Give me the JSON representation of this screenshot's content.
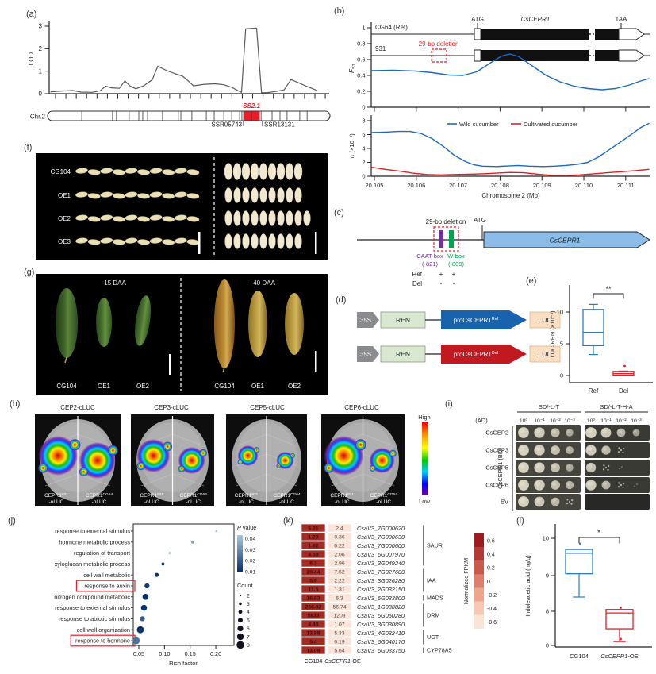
{
  "colors": {
    "blue": "#2b7bc4",
    "red": "#e01f26",
    "accent_red": "#ee1c25",
    "heat_hi": "#a32b24",
    "heat_lo": "#fbe4d9"
  },
  "panels": {
    "a": {
      "label": "(a)",
      "ylabel": "LOD",
      "yticks": [
        0,
        1,
        2,
        3
      ],
      "chr_label": "Chr.2",
      "locus": "SS2.1",
      "marker_left": "SSR05743",
      "marker_right": "SSR13131",
      "bands": [
        0.121,
        0.23,
        0.244,
        0.289,
        0.323,
        0.337,
        0.354,
        0.407,
        0.463,
        0.472,
        0.511,
        0.562,
        0.59,
        0.624,
        0.652,
        0.68,
        0.688,
        0.756,
        0.795,
        0.823,
        0.848,
        0.893,
        0.919
      ],
      "locus_region": [
        0.694,
        0.75
      ]
    },
    "b": {
      "label": "(b)",
      "gene_rows": [
        {
          "name": "CG64 (Ref)"
        },
        {
          "name": "931"
        }
      ],
      "deletion_label": "29-bp deletion",
      "atg": "ATG",
      "taa": "TAA",
      "gene": "CsCEPR1",
      "fst_yticks": [
        "1",
        "0.8",
        "0.6",
        "0.4",
        "0.2",
        "0"
      ],
      "pi_label": "π (×10⁻³)",
      "pi_yticks": [
        "8",
        "6",
        "4",
        "2",
        "0"
      ],
      "legend": [
        {
          "label": "Wild cucumber",
          "color": "#1b6ac2"
        },
        {
          "label": "Cultivated cucumber",
          "color": "#e01f26"
        }
      ],
      "xlabel": "Chromosome 2 (Mb)",
      "xticks": [
        "20.105",
        "20.106",
        "20.107",
        "20.108",
        "20.109",
        "20.110",
        "20.111"
      ]
    },
    "c": {
      "label": "(c)",
      "deletion_label": "29-bp deletion",
      "atg": "ATG",
      "gene": "CsCEPR1",
      "caat": {
        "name": "CAAT-box",
        "pos": "(-821)",
        "color": "#7030a0"
      },
      "wbox": {
        "name": "W-box",
        "pos": "(-809)",
        "color": "#00a550"
      },
      "rows": [
        {
          "name": "Ref",
          "caat": "+",
          "wbox": "+"
        },
        {
          "name": "Del",
          "caat": "-",
          "wbox": "-"
        }
      ]
    },
    "d": {
      "label": "(d)",
      "constructs": [
        {
          "promoter": "35S",
          "reporter1": "REN",
          "insert": "proCsCEPR1",
          "sup": "Ref",
          "reporter2": "LUC",
          "color": "#1862ae"
        },
        {
          "promoter": "35S",
          "reporter1": "REN",
          "insert": "proCsCEPR1",
          "sup": "Del",
          "reporter2": "LUC",
          "color": "#c01a20"
        }
      ]
    },
    "e": {
      "label": "(e)",
      "ylabel": "LUC/REN (×10⁻³)",
      "yticks": [
        "0",
        "5",
        "10"
      ],
      "sig": "**",
      "categories": [
        "Ref",
        "Del"
      ]
    },
    "f": {
      "label": "(f)",
      "rows": [
        "CG104",
        "OE1",
        "OE2",
        "OE3"
      ],
      "seed_counts_side": [
        10,
        10,
        10,
        10
      ],
      "seed_counts_top": [
        9,
        9,
        10,
        9
      ]
    },
    "g": {
      "label": "(g)",
      "timepoints": [
        "15 DAA",
        "40 DAA"
      ],
      "categories": [
        "CG104",
        "OE1",
        "OE2"
      ]
    },
    "h": {
      "label": "(h)",
      "titles": [
        "CEP2-cLUC",
        "CEP3-cLUC",
        "CEP5-cLUC",
        "CEP6-cLUC"
      ],
      "half_labels": [
        {
          "main": "CEPR1",
          "sup": "931",
          "sub": "-nLUC"
        },
        {
          "main": "CEPR1",
          "sup": "CG64",
          "sub": "-nLUC"
        }
      ],
      "scale": {
        "high": "High",
        "low": "Low"
      },
      "blobs": [
        [
          25,
          23
        ],
        [
          21,
          17
        ],
        [
          13,
          11
        ],
        [
          25,
          16
        ]
      ]
    },
    "i": {
      "label": "(i)",
      "media": [
        "SD/-L-T",
        "SD/-L-T-H-A"
      ],
      "ad_label": "(AD)",
      "bd_label": "CsCEPR1 (BD)",
      "dilutions": [
        "10⁰",
        "10⁻¹",
        "10⁻²",
        "10⁻³"
      ],
      "rows": [
        {
          "name": "CsCEP2",
          "left": [
            1,
            0.95,
            0.75,
            0.55
          ],
          "right": [
            1,
            0.9,
            0.7,
            0.5
          ]
        },
        {
          "name": "CsCEP3",
          "left": [
            1,
            0.95,
            0.8,
            0.6
          ],
          "right": [
            0.95,
            0.75,
            0.35,
            0
          ]
        },
        {
          "name": "CsCEP5",
          "left": [
            1,
            0.95,
            0.8,
            0.55
          ],
          "right": [
            0.85,
            0.35,
            0.08,
            0
          ]
        },
        {
          "name": "CsCEP6",
          "left": [
            1,
            0.95,
            0.8,
            0.65
          ],
          "right": [
            0.95,
            0.7,
            0.3,
            0.08
          ]
        },
        {
          "name": "EV",
          "left": [
            1,
            0.9,
            0.7,
            0.45
          ],
          "right": [
            0,
            0,
            0,
            0
          ]
        }
      ]
    },
    "j": {
      "label": "(j)",
      "xlabel": "Rich factor",
      "xticks": [
        "0.05",
        "0.10",
        "0.15",
        "0.20"
      ],
      "pvalue_legend": {
        "title_italic": "P",
        "title_rest": " value",
        "ticks": [
          "0.04",
          "0.03",
          "0.02",
          "0.01"
        ]
      },
      "count_legend": {
        "title": "Count",
        "sizes": [
          2,
          3,
          4,
          5,
          6,
          7,
          8
        ]
      }
    },
    "k": {
      "label": "(k)",
      "columns": [
        "CG104",
        "CsCEPR1",
        "-OE"
      ],
      "colorbar": {
        "title": "Normalized FPKM",
        "ticks": [
          "0.6",
          "0.4",
          "0.2",
          "0",
          "-0.2",
          "-0.4",
          "-0.6"
        ],
        "colors": [
          "#9c1b1e",
          "#b33935",
          "#c85a4b",
          "#dd7f69",
          "#eda58c",
          "#f7c9b2",
          "#fbe4d6"
        ]
      }
    },
    "l": {
      "label": "(l)",
      "ylabel": "Indoleacetic acid (ng/g)",
      "yticks": [
        10,
        9,
        8,
        0
      ],
      "sig": "*",
      "categories": [
        "CG104",
        "CsCEPR1",
        "-OE"
      ]
    }
  },
  "chart_data": [
    {
      "id": "lod",
      "type": "line",
      "ylabel": "LOD",
      "ylim": [
        0,
        3
      ],
      "x": "relative position on Chr.2",
      "points": [
        [
          0,
          0.08
        ],
        [
          0.04,
          0.12
        ],
        [
          0.08,
          0.14
        ],
        [
          0.11,
          0.07
        ],
        [
          0.15,
          0.06
        ],
        [
          0.18,
          0.13
        ],
        [
          0.2,
          0.34
        ],
        [
          0.22,
          0.26
        ],
        [
          0.25,
          0.24
        ],
        [
          0.27,
          0.57
        ],
        [
          0.29,
          0.34
        ],
        [
          0.31,
          0.22
        ],
        [
          0.34,
          0.36
        ],
        [
          0.37,
          0.62
        ],
        [
          0.39,
          1.22
        ],
        [
          0.42,
          1.04
        ],
        [
          0.45,
          0.9
        ],
        [
          0.48,
          0.78
        ],
        [
          0.5,
          0.58
        ],
        [
          0.52,
          0.35
        ],
        [
          0.56,
          0.42
        ],
        [
          0.6,
          0.44
        ],
        [
          0.63,
          0.4
        ],
        [
          0.66,
          0.28
        ],
        [
          0.68,
          0.15
        ],
        [
          0.695,
          0.06
        ],
        [
          0.71,
          2.88
        ],
        [
          0.75,
          2.92
        ],
        [
          0.768,
          0.04
        ],
        [
          0.79,
          0.05
        ],
        [
          0.82,
          0.1
        ],
        [
          0.85,
          0.17
        ],
        [
          0.875,
          0.63
        ],
        [
          0.9,
          0.5
        ],
        [
          0.93,
          0.34
        ],
        [
          0.97,
          0.15
        ]
      ]
    },
    {
      "id": "fst",
      "type": "line",
      "ylabel": "FST",
      "ylim": [
        0,
        1
      ],
      "x_range": [
        20.105,
        20.1113
      ],
      "points": [
        [
          0,
          0.46
        ],
        [
          0.08,
          0.465
        ],
        [
          0.16,
          0.455
        ],
        [
          0.22,
          0.435
        ],
        [
          0.28,
          0.405
        ],
        [
          0.33,
          0.4
        ],
        [
          0.38,
          0.445
        ],
        [
          0.43,
          0.56
        ],
        [
          0.47,
          0.645
        ],
        [
          0.5,
          0.67
        ],
        [
          0.53,
          0.64
        ],
        [
          0.58,
          0.52
        ],
        [
          0.63,
          0.4
        ],
        [
          0.68,
          0.32
        ],
        [
          0.73,
          0.265
        ],
        [
          0.78,
          0.235
        ],
        [
          0.83,
          0.22
        ],
        [
          0.88,
          0.235
        ],
        [
          0.93,
          0.28
        ],
        [
          0.97,
          0.33
        ],
        [
          1,
          0.36
        ]
      ]
    },
    {
      "id": "pi",
      "type": "line",
      "ylabel": "π (×10⁻³)",
      "ylim": [
        0,
        8
      ],
      "x_range": [
        20.105,
        20.1113
      ],
      "xlabel": "Chromosome 2 (Mb)",
      "series": [
        {
          "name": "Wild cucumber",
          "color": "#1b6ac2",
          "points": [
            [
              0,
              6.3
            ],
            [
              0.05,
              6.35
            ],
            [
              0.1,
              6.45
            ],
            [
              0.14,
              6.45
            ],
            [
              0.18,
              6.15
            ],
            [
              0.22,
              5.4
            ],
            [
              0.26,
              4.3
            ],
            [
              0.3,
              3
            ],
            [
              0.34,
              2.1
            ],
            [
              0.37,
              1.65
            ],
            [
              0.4,
              1.45
            ],
            [
              0.45,
              1.4
            ],
            [
              0.5,
              1.5
            ],
            [
              0.53,
              1.55
            ],
            [
              0.57,
              1.45
            ],
            [
              0.62,
              1.4
            ],
            [
              0.66,
              1.45
            ],
            [
              0.7,
              1.55
            ],
            [
              0.74,
              1.7
            ],
            [
              0.78,
              2
            ],
            [
              0.82,
              2.8
            ],
            [
              0.86,
              3.9
            ],
            [
              0.9,
              5
            ],
            [
              0.94,
              6.1
            ],
            [
              0.97,
              7
            ],
            [
              1,
              7.6
            ]
          ]
        },
        {
          "name": "Cultivated cucumber",
          "color": "#e01f26",
          "points": [
            [
              0,
              1.3
            ],
            [
              0.05,
              1
            ],
            [
              0.1,
              0.75
            ],
            [
              0.15,
              0.45
            ],
            [
              0.2,
              0.25
            ],
            [
              0.25,
              0.2
            ],
            [
              0.3,
              0.25
            ],
            [
              0.35,
              0.3
            ],
            [
              0.4,
              0.35
            ],
            [
              0.45,
              0.45
            ],
            [
              0.5,
              0.55
            ],
            [
              0.55,
              0.5
            ],
            [
              0.6,
              0.3
            ],
            [
              0.65,
              0.12
            ],
            [
              0.7,
              0.1
            ],
            [
              0.75,
              0.2
            ],
            [
              0.8,
              0.35
            ],
            [
              0.85,
              0.5
            ],
            [
              0.9,
              0.65
            ],
            [
              0.95,
              0.8
            ],
            [
              1,
              1
            ]
          ]
        }
      ]
    },
    {
      "id": "luc",
      "type": "box",
      "ylabel": "LUC/REN (×10⁻³)",
      "ylim": [
        0,
        14
      ],
      "sig": "**",
      "boxes": [
        {
          "name": "Ref",
          "color": "#2b7bc4",
          "q1": 4.7,
          "q3": 10.4,
          "median": 6.8,
          "whisker_low": 3.3,
          "whisker_high": 11.2,
          "outliers": []
        },
        {
          "name": "Del",
          "color": "#e01f26",
          "q1": 0.05,
          "q3": 0.65,
          "median": 0.3,
          "whisker_low": 0.0,
          "whisker_high": 0.7,
          "outliers": [
            1.5
          ]
        }
      ]
    },
    {
      "id": "go",
      "type": "scatter",
      "xlabel": "Rich factor",
      "xlim": [
        0.04,
        0.21
      ],
      "categories": [
        {
          "term": "response to external stimulus",
          "rich": 0.201,
          "count": 2,
          "p": 0.04,
          "boxed": false
        },
        {
          "term": "hormone metabolic process",
          "rich": 0.155,
          "count": 3,
          "p": 0.03,
          "boxed": false
        },
        {
          "term": "regulation of transport",
          "rich": 0.11,
          "count": 2,
          "p": 0.035,
          "boxed": false
        },
        {
          "term": "xyloglucan metabolic process",
          "rich": 0.097,
          "count": 3,
          "p": 0.006,
          "boxed": false
        },
        {
          "term": "cell wall metabolic",
          "rich": 0.085,
          "count": 4,
          "p": 0.006,
          "boxed": false
        },
        {
          "term": "response to auxin",
          "rich": 0.066,
          "count": 5,
          "p": 0.008,
          "boxed": true
        },
        {
          "term": "nitrogen compound metabolic",
          "rich": 0.063,
          "count": 6,
          "p": 0.005,
          "boxed": false
        },
        {
          "term": "response to external stimulus",
          "rich": 0.06,
          "count": 6,
          "p": 0.005,
          "boxed": false
        },
        {
          "term": "response to abiotic stimulus",
          "rich": 0.057,
          "count": 5,
          "p": 0.015,
          "boxed": false
        },
        {
          "term": "cell wall organization",
          "rich": 0.053,
          "count": 7,
          "p": 0.005,
          "boxed": false
        },
        {
          "term": "response to hormone",
          "rich": 0.045,
          "count": 7,
          "p": 0.02,
          "boxed": true
        }
      ]
    },
    {
      "id": "fpkm",
      "type": "table",
      "title": "Normalized FPKM heatmap",
      "columns": [
        "CG104",
        "CsCEPR1-OE"
      ],
      "rows": [
        {
          "cg104": "5.21",
          "oe": "2.4",
          "gene": "CsaV3_7G000620",
          "group": "SAUR"
        },
        {
          "cg104": "1.29",
          "oe": "0.36",
          "gene": "CsaV3_7G000630",
          "group": "SAUR"
        },
        {
          "cg104": "1.62",
          "oe": "0.22",
          "gene": "CsaV3_7G000600",
          "group": "SAUR"
        },
        {
          "cg104": "4.58",
          "oe": "2.06",
          "gene": "CsaV3_6G007970",
          "group": "SAUR"
        },
        {
          "cg104": "6.3",
          "oe": "2.96",
          "gene": "CsaV3_3G049240",
          "group": "SAUR"
        },
        {
          "cg104": "20.44",
          "oe": "7.52",
          "gene": "CsaV3_7G027600",
          "group": "IAA"
        },
        {
          "cg104": "5.9",
          "oe": "2.22",
          "gene": "CsaV3_3G026280",
          "group": "IAA"
        },
        {
          "cg104": "11.5",
          "oe": "1.31",
          "gene": "CsaV3_2G032150",
          "group": "IAA"
        },
        {
          "cg104": "16.83",
          "oe": "6.3",
          "gene": "CsaV3_6G033800",
          "group": "MADS"
        },
        {
          "cg104": "266.82",
          "oe": "56.74",
          "gene": "CsaV3_1G038820",
          "group": "DRM"
        },
        {
          "cg104": "5833",
          "oe": "1203",
          "gene": "CsaV3_6G050280",
          "group": "DRM"
        },
        {
          "cg104": "4.46",
          "oe": "1.07",
          "gene": "CsaV3_3G030890",
          "group": "DRM"
        },
        {
          "cg104": "13.89",
          "oe": "5.33",
          "gene": "CsaV3_4G032410",
          "group": "UGT"
        },
        {
          "cg104": "5.4",
          "oe": "0.19",
          "gene": "CsaV3_6G040170",
          "group": "UGT"
        },
        {
          "cg104": "13.09",
          "oe": "5.64",
          "gene": "CsaV3_6G033750",
          "group": "CYP78A5"
        }
      ]
    },
    {
      "id": "iaa",
      "type": "box",
      "ylabel": "Indoleacetic acid (ng/g)",
      "sig": "*",
      "boxes": [
        {
          "name": "CG104",
          "color": "#2b7bc4",
          "q1": 9.05,
          "q3": 9.7,
          "median": 9.6,
          "whisker_low": 8.4,
          "whisker_high": 9.7,
          "outliers": [
            9.85
          ]
        },
        {
          "name": "CsCEPR1-OE",
          "color": "#e01f26",
          "q1": 3.9,
          "q3": 8.05,
          "median": 7.6,
          "whisker_low": 0.9,
          "whisker_high": 8.05,
          "outliers": [
            8.1,
            1.5
          ]
        }
      ]
    }
  ]
}
